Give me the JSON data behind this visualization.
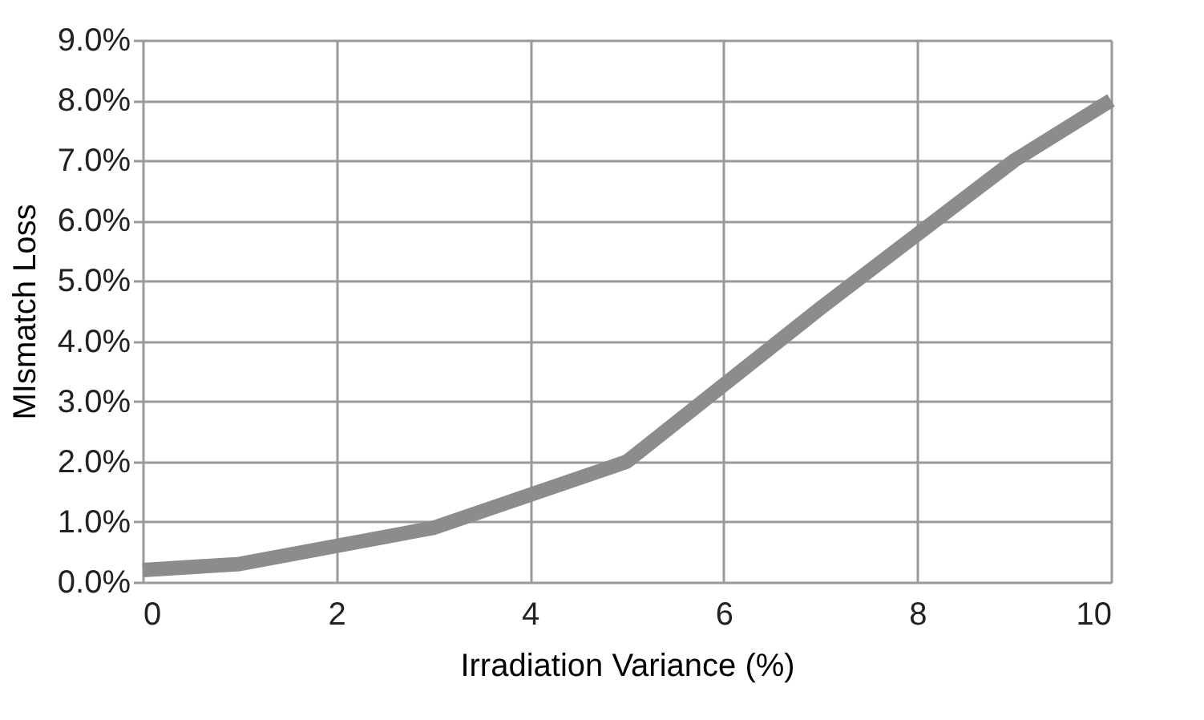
{
  "chart_data": {
    "type": "line",
    "xlabel": "Irradiation Variance (%)",
    "ylabel": "MIsmatch Loss",
    "x": [
      0,
      1,
      3,
      5,
      7,
      9,
      10
    ],
    "series": [
      {
        "color": "#8c8c8c",
        "values": [
          0.2,
          0.3,
          0.9,
          2.0,
          4.55,
          7.0,
          8.0
        ]
      }
    ],
    "xlim": [
      0,
      10
    ],
    "xticks": [
      0,
      2,
      4,
      6,
      8,
      10
    ],
    "ylim": [
      0,
      9
    ],
    "yticks": [
      {
        "value": 0,
        "label": "0.0%"
      },
      {
        "value": 1,
        "label": "1.0%"
      },
      {
        "value": 2,
        "label": "2.0%"
      },
      {
        "value": 3,
        "label": "3.0%"
      },
      {
        "value": 4,
        "label": "4.0%"
      },
      {
        "value": 5,
        "label": "5.0%"
      },
      {
        "value": 6,
        "label": "6.0%"
      },
      {
        "value": 7,
        "label": "7.0%"
      },
      {
        "value": 8,
        "label": "8.0%"
      },
      {
        "value": 9,
        "label": "9.0%"
      }
    ],
    "grid": true,
    "marker": "none",
    "line_style": "solid"
  }
}
